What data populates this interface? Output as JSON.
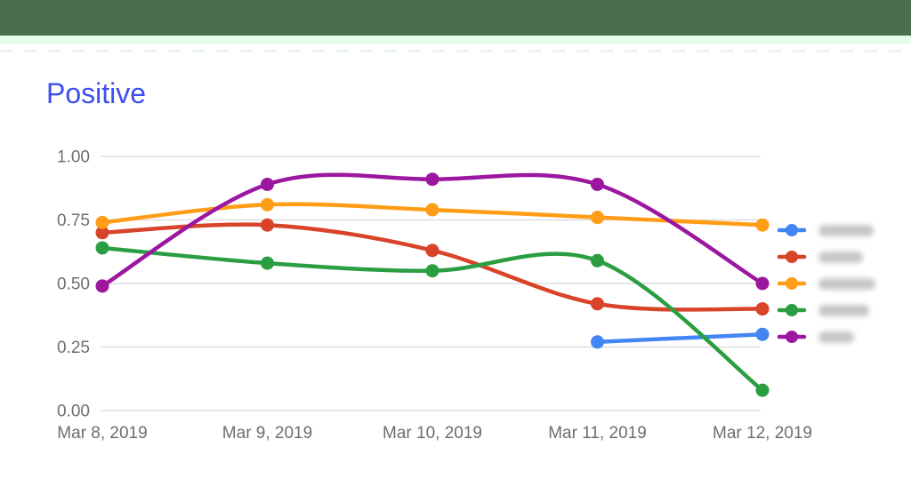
{
  "window": {
    "top_bar_color": "#4a6e50",
    "top_strip_color": "#e7fbec",
    "background_color": "#ffffff"
  },
  "chart": {
    "title": "Positive",
    "title_color": "#3d4ef0"
  },
  "chart_data": {
    "type": "line",
    "title": "Positive",
    "smooth": true,
    "grid": true,
    "legend_position": "right",
    "legend_labels_redacted": true,
    "x": [
      "Mar 8, 2019",
      "Mar 9, 2019",
      "Mar 10, 2019",
      "Mar 11, 2019",
      "Mar 12, 2019"
    ],
    "series": [
      {
        "name": "series-blue",
        "color": "#4285f4",
        "values": [
          null,
          null,
          null,
          0.27,
          0.3
        ]
      },
      {
        "name": "series-red",
        "color": "#d8432a",
        "values": [
          0.7,
          0.73,
          0.63,
          0.42,
          0.4
        ]
      },
      {
        "name": "series-orange",
        "color": "#ff9d17",
        "values": [
          0.74,
          0.81,
          0.79,
          0.76,
          0.73
        ]
      },
      {
        "name": "series-green",
        "color": "#2b9e41",
        "values": [
          0.64,
          0.58,
          0.55,
          0.59,
          0.08
        ]
      },
      {
        "name": "series-purple",
        "color": "#9c17a0",
        "values": [
          0.49,
          0.89,
          0.91,
          0.89,
          0.5
        ]
      }
    ],
    "y_tick_labels": [
      "1.00",
      "0.75",
      "0.50",
      "0.25",
      "0.00"
    ],
    "ylim": [
      0,
      1
    ],
    "axis_label_color": "#6e6e6e",
    "gridline_color": "#d8d8d8"
  },
  "legend": {
    "items": [
      {
        "series": 0,
        "blur_width": 62
      },
      {
        "series": 1,
        "blur_width": 50
      },
      {
        "series": 2,
        "blur_width": 64
      },
      {
        "series": 3,
        "blur_width": 57
      },
      {
        "series": 4,
        "blur_width": 40
      }
    ]
  }
}
